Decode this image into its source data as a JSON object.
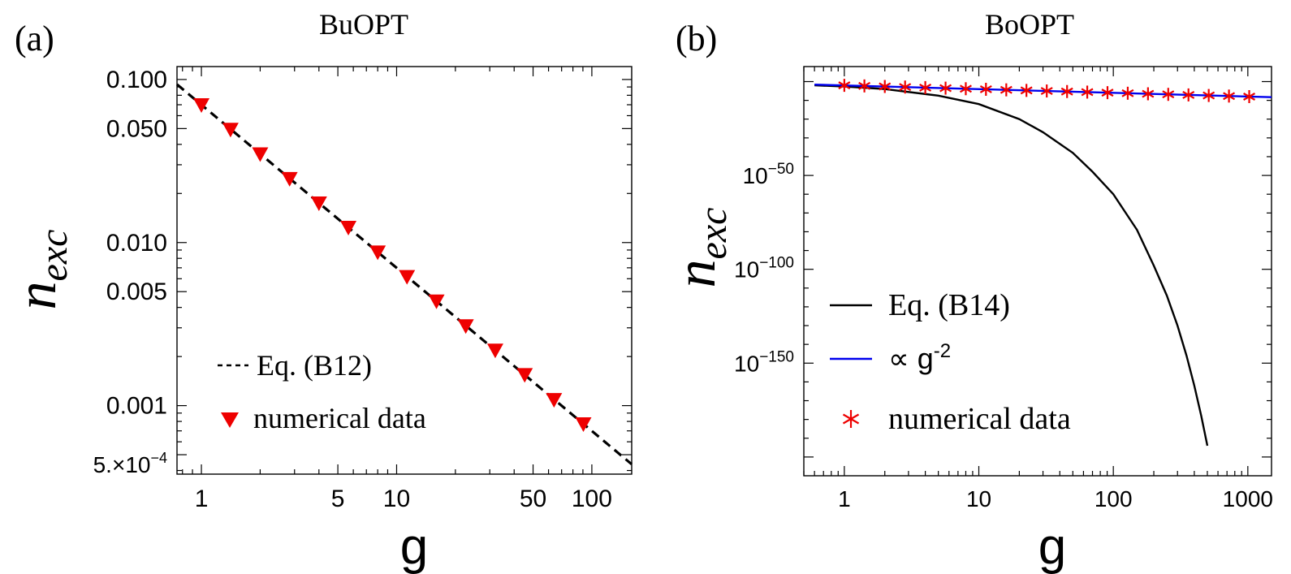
{
  "chart_data": [
    {
      "panel_label": "(a)",
      "title": "BuOPT",
      "type": "line",
      "xscale": "log",
      "yscale": "log",
      "xlabel": "g",
      "ylabel_base": "n",
      "ylabel_sub": "exc",
      "xlim": [
        0.75,
        160
      ],
      "ylim": [
        0.00038,
        0.12
      ],
      "xticks": [
        {
          "value": 1,
          "label": "1"
        },
        {
          "value": 5,
          "label": "5"
        },
        {
          "value": 10,
          "label": "10"
        },
        {
          "value": 50,
          "label": "50"
        },
        {
          "value": 100,
          "label": "100"
        }
      ],
      "yticks": [
        {
          "value": 0.1,
          "label": "0.100"
        },
        {
          "value": 0.05,
          "label": "0.050"
        },
        {
          "value": 0.01,
          "label": "0.010"
        },
        {
          "value": 0.005,
          "label": "0.005"
        },
        {
          "value": 0.001,
          "label": "0.001"
        }
      ],
      "ytick_special": {
        "value": 0.0005,
        "mantissa": "5.×10",
        "exponent": "−4"
      },
      "series": [
        {
          "name": "Eq. (B12)",
          "style": "dashed",
          "color": "#000000",
          "x": [
            0.75,
            160
          ],
          "y": [
            0.0933,
            0.000437
          ]
        },
        {
          "name": "numerical data",
          "style": "triangle-down",
          "color": "#ee0000",
          "x": [
            1,
            1.41,
            2,
            2.83,
            4,
            5.66,
            8,
            11.3,
            16,
            22.6,
            32,
            45.3,
            64,
            90.5
          ],
          "y": [
            0.07,
            0.0495,
            0.035,
            0.0247,
            0.0175,
            0.0124,
            0.00875,
            0.00619,
            0.00438,
            0.00309,
            0.00219,
            0.00155,
            0.00109,
            0.000773
          ]
        }
      ],
      "legend": {
        "position": "bottom-left"
      }
    },
    {
      "panel_label": "(b)",
      "title": "BoOPT",
      "type": "line",
      "xscale": "log",
      "yscale": "log",
      "xlabel": "g",
      "ylabel_base": "n",
      "ylabel_sub": "exc",
      "xlim": [
        0.5,
        1500
      ],
      "ylim": [
        -210,
        8
      ],
      "ylim_note": "y-axis limits expressed as log10 exponent",
      "xticks": [
        {
          "value": 1,
          "label": "1"
        },
        {
          "value": 10,
          "label": "10"
        },
        {
          "value": 100,
          "label": "100"
        },
        {
          "value": 1000,
          "label": "1000"
        }
      ],
      "yticks": [
        {
          "exponent": -50,
          "base": "10",
          "sup": "−50"
        },
        {
          "exponent": -100,
          "base": "10",
          "sup": "−100"
        },
        {
          "exponent": -150,
          "base": "10",
          "sup": "−150"
        }
      ],
      "series": [
        {
          "name": "Eq. (B14)",
          "style": "solid",
          "color": "#000000",
          "x": [
            0.6,
            1,
            2,
            5,
            10,
            20,
            30,
            50,
            70,
            100,
            150,
            200,
            250,
            300,
            350,
            400,
            450,
            500
          ],
          "log10_y": [
            -2,
            -2.6,
            -4,
            -7.5,
            -12,
            -20,
            -27,
            -38,
            -48,
            -60,
            -79,
            -98,
            -114,
            -130,
            -146,
            -162,
            -178,
            -194
          ]
        },
        {
          "name": "∝ g⁻²",
          "legend_base": "∝ g",
          "legend_sup": "-2",
          "style": "solid",
          "color": "#0000ee",
          "x": [
            0.6,
            1500
          ],
          "log10_y": [
            -1.6,
            -8.3
          ]
        },
        {
          "name": "numerical data",
          "style": "asterisk",
          "color": "#ee0000",
          "x": [
            1,
            1.41,
            2,
            2.83,
            4,
            5.66,
            8,
            11.3,
            16,
            22.6,
            32,
            45.3,
            64,
            90.5,
            128,
            181,
            256,
            362,
            512,
            724,
            1024
          ],
          "log10_y": [
            -2.0,
            -2.3,
            -2.6,
            -2.9,
            -3.2,
            -3.5,
            -3.8,
            -4.1,
            -4.4,
            -4.7,
            -5.0,
            -5.3,
            -5.6,
            -5.9,
            -6.2,
            -6.5,
            -6.8,
            -7.1,
            -7.4,
            -7.7,
            -8.0
          ]
        }
      ],
      "legend": {
        "position": "bottom-left"
      }
    }
  ]
}
